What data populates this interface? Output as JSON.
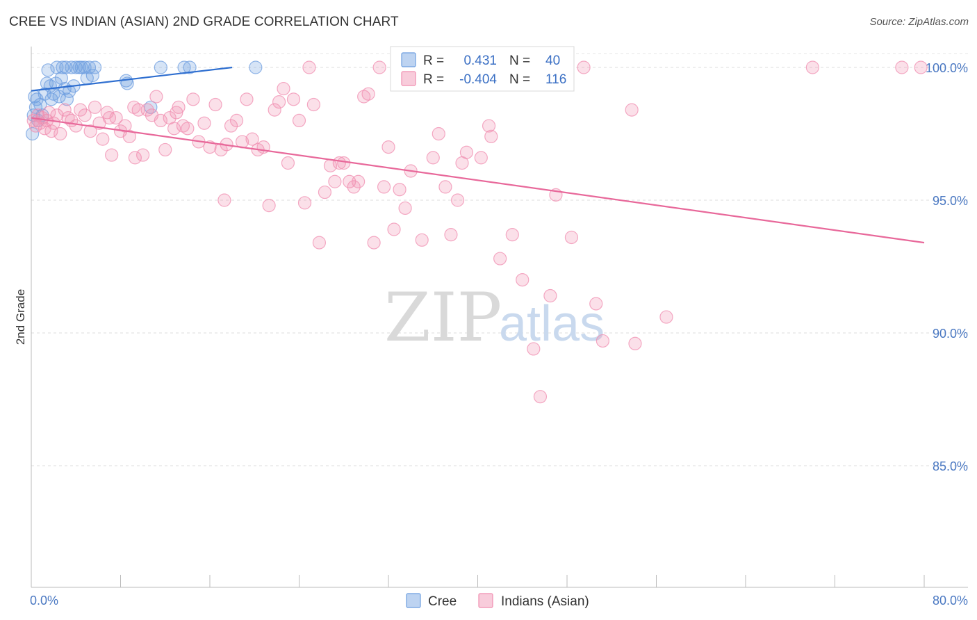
{
  "title": "CREE VS INDIAN (ASIAN) 2ND GRADE CORRELATION CHART",
  "source": "Source: ZipAtlas.com",
  "watermark": {
    "zip": "ZIP",
    "atlas": "atlas"
  },
  "colors": {
    "cree": "#6d9ee0",
    "indian": "#f08eb0",
    "cree_line": "#2f6fd0",
    "indian_line": "#e8689a"
  },
  "legend": {
    "rows": [
      {
        "r_label": "R =",
        "r_value": "0.431",
        "n_label": "N =",
        "n_value": "40"
      },
      {
        "r_label": "R =",
        "r_value": "-0.404",
        "n_label": "N =",
        "n_value": "116"
      }
    ]
  },
  "chart_data": {
    "type": "scatter",
    "title": "CREE VS INDIAN (ASIAN) 2ND GRADE CORRELATION CHART",
    "xlabel": "",
    "ylabel": "2nd Grade",
    "xlim": [
      0,
      80
    ],
    "ylim": [
      80.5,
      100.8
    ],
    "x_tick_labels": [
      "0.0%",
      "80.0%"
    ],
    "y_ticks": [
      100,
      95,
      90,
      85
    ],
    "y_tick_labels": [
      "100.0%",
      "95.0%",
      "90.0%",
      "85.0%"
    ],
    "grid": true,
    "legend_position": "top-center",
    "series": [
      {
        "name": "Cree",
        "color": "#6d9ee0",
        "trend": {
          "x": [
            0.0,
            18.0
          ],
          "y": [
            99.12,
            100.0
          ]
        },
        "points": [
          [
            0.1,
            97.5
          ],
          [
            0.2,
            98.2
          ],
          [
            0.3,
            98.9
          ],
          [
            0.4,
            98.5
          ],
          [
            0.5,
            98.8
          ],
          [
            0.6,
            98.0
          ],
          [
            0.8,
            98.6
          ],
          [
            1.0,
            98.2
          ],
          [
            1.2,
            99.0
          ],
          [
            1.4,
            99.4
          ],
          [
            1.5,
            99.9
          ],
          [
            1.7,
            99.3
          ],
          [
            1.8,
            98.8
          ],
          [
            2.0,
            99.0
          ],
          [
            2.2,
            99.4
          ],
          [
            2.3,
            100.0
          ],
          [
            2.5,
            98.9
          ],
          [
            2.7,
            99.6
          ],
          [
            2.8,
            100.0
          ],
          [
            3.0,
            99.2
          ],
          [
            3.1,
            100.0
          ],
          [
            3.2,
            98.8
          ],
          [
            3.4,
            99.1
          ],
          [
            3.6,
            100.0
          ],
          [
            3.8,
            99.3
          ],
          [
            4.0,
            100.0
          ],
          [
            4.3,
            100.0
          ],
          [
            4.5,
            100.0
          ],
          [
            4.8,
            100.0
          ],
          [
            5.0,
            99.6
          ],
          [
            5.2,
            100.0
          ],
          [
            5.5,
            99.7
          ],
          [
            5.7,
            100.0
          ],
          [
            8.5,
            99.5
          ],
          [
            8.6,
            99.4
          ],
          [
            10.7,
            98.5
          ],
          [
            11.6,
            100.0
          ],
          [
            13.7,
            100.0
          ],
          [
            14.2,
            100.0
          ],
          [
            20.1,
            100.0
          ]
        ]
      },
      {
        "name": "Indians (Asian)",
        "color": "#f08eb0",
        "trend": {
          "x": [
            0.0,
            80.0
          ],
          "y": [
            98.1,
            93.4
          ]
        },
        "points": [
          [
            0.2,
            98.0
          ],
          [
            0.4,
            97.8
          ],
          [
            0.6,
            98.2
          ],
          [
            0.8,
            97.9
          ],
          [
            1.0,
            98.1
          ],
          [
            1.2,
            97.7
          ],
          [
            1.4,
            98.0
          ],
          [
            1.6,
            98.3
          ],
          [
            1.8,
            97.6
          ],
          [
            2.0,
            97.9
          ],
          [
            2.3,
            98.2
          ],
          [
            2.6,
            97.5
          ],
          [
            3.0,
            98.4
          ],
          [
            3.3,
            98.1
          ],
          [
            3.6,
            98.0
          ],
          [
            4.0,
            97.8
          ],
          [
            4.4,
            98.4
          ],
          [
            4.8,
            98.2
          ],
          [
            5.3,
            97.6
          ],
          [
            5.7,
            98.5
          ],
          [
            6.1,
            97.9
          ],
          [
            6.4,
            97.3
          ],
          [
            6.8,
            98.3
          ],
          [
            7.2,
            96.7
          ],
          [
            7.6,
            98.1
          ],
          [
            8.0,
            97.6
          ],
          [
            8.4,
            97.8
          ],
          [
            8.8,
            97.4
          ],
          [
            9.2,
            98.5
          ],
          [
            9.6,
            98.4
          ],
          [
            10.0,
            96.7
          ],
          [
            10.4,
            98.4
          ],
          [
            10.8,
            98.2
          ],
          [
            11.2,
            98.9
          ],
          [
            11.6,
            98.0
          ],
          [
            12.0,
            96.9
          ],
          [
            12.4,
            98.1
          ],
          [
            12.8,
            97.7
          ],
          [
            13.2,
            98.5
          ],
          [
            13.6,
            97.8
          ],
          [
            14.0,
            97.7
          ],
          [
            14.5,
            98.8
          ],
          [
            15.0,
            97.2
          ],
          [
            15.5,
            97.9
          ],
          [
            16.0,
            97.0
          ],
          [
            16.5,
            98.6
          ],
          [
            17.0,
            96.9
          ],
          [
            17.3,
            95.0
          ],
          [
            17.5,
            97.1
          ],
          [
            17.9,
            97.8
          ],
          [
            18.4,
            98.0
          ],
          [
            18.9,
            97.2
          ],
          [
            19.3,
            98.8
          ],
          [
            19.8,
            97.3
          ],
          [
            20.3,
            96.9
          ],
          [
            20.8,
            97.0
          ],
          [
            21.3,
            94.8
          ],
          [
            21.8,
            98.4
          ],
          [
            22.2,
            98.7
          ],
          [
            22.6,
            99.2
          ],
          [
            23.0,
            96.4
          ],
          [
            23.5,
            98.8
          ],
          [
            24.0,
            98.0
          ],
          [
            24.5,
            94.9
          ],
          [
            24.9,
            100.0
          ],
          [
            25.3,
            98.6
          ],
          [
            25.8,
            93.4
          ],
          [
            26.3,
            95.3
          ],
          [
            26.8,
            96.3
          ],
          [
            27.2,
            95.7
          ],
          [
            27.6,
            96.4
          ],
          [
            28.0,
            96.4
          ],
          [
            28.5,
            95.7
          ],
          [
            28.9,
            95.5
          ],
          [
            29.3,
            95.7
          ],
          [
            29.8,
            98.9
          ],
          [
            30.2,
            99.0
          ],
          [
            30.7,
            93.4
          ],
          [
            31.2,
            100.0
          ],
          [
            31.6,
            95.5
          ],
          [
            32.0,
            97.0
          ],
          [
            32.5,
            93.9
          ],
          [
            33.0,
            95.4
          ],
          [
            33.5,
            94.7
          ],
          [
            34.0,
            96.1
          ],
          [
            35.0,
            93.5
          ],
          [
            36.0,
            96.6
          ],
          [
            36.5,
            97.5
          ],
          [
            37.1,
            95.5
          ],
          [
            37.6,
            93.7
          ],
          [
            38.2,
            95.0
          ],
          [
            38.6,
            96.4
          ],
          [
            39.0,
            96.8
          ],
          [
            40.3,
            96.6
          ],
          [
            41.0,
            97.8
          ],
          [
            41.2,
            97.4
          ],
          [
            42.0,
            92.8
          ],
          [
            43.1,
            93.7
          ],
          [
            44.0,
            92.0
          ],
          [
            45.0,
            89.4
          ],
          [
            45.6,
            87.6
          ],
          [
            46.5,
            91.4
          ],
          [
            47.0,
            95.2
          ],
          [
            48.4,
            93.6
          ],
          [
            49.5,
            100.0
          ],
          [
            50.6,
            91.1
          ],
          [
            51.2,
            89.7
          ],
          [
            53.8,
            98.4
          ],
          [
            54.1,
            89.6
          ],
          [
            56.9,
            90.6
          ],
          [
            70.0,
            100.0
          ],
          [
            78.0,
            100.0
          ],
          [
            79.7,
            100.0
          ],
          [
            7.0,
            98.1
          ],
          [
            9.3,
            96.6
          ],
          [
            13.0,
            98.3
          ]
        ]
      }
    ]
  },
  "bottom_legend": [
    {
      "name": "Cree",
      "color": "#6d9ee0"
    },
    {
      "name": "Indians (Asian)",
      "color": "#f08eb0"
    }
  ]
}
